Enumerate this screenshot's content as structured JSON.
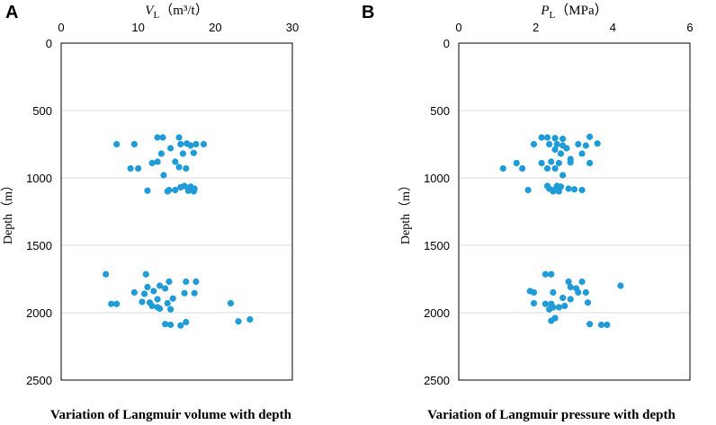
{
  "chart_data": [
    {
      "panel": "A",
      "type": "scatter",
      "xlabel_var": "V",
      "xlabel_sub": "L",
      "xlabel_unit": "（m³/t）",
      "ylabel": "Depth（m）",
      "caption": "Variation of Langmuir volume with depth",
      "xlim": [
        0,
        30
      ],
      "ylim": [
        0,
        2500
      ],
      "x_ticks": [
        "0",
        "10",
        "20",
        "30"
      ],
      "y_ticks": [
        "0",
        "500",
        "1000",
        "1500",
        "2000",
        "2500"
      ],
      "x_axis_position": "top",
      "y_axis_inverted": true,
      "color": "#1f9bd7",
      "points": [
        [
          12.5,
          700
        ],
        [
          13.2,
          700
        ],
        [
          15.3,
          700
        ],
        [
          7.2,
          750
        ],
        [
          9.5,
          750
        ],
        [
          15.5,
          750
        ],
        [
          16.3,
          745
        ],
        [
          16.8,
          760
        ],
        [
          17.5,
          750
        ],
        [
          18.5,
          750
        ],
        [
          14.2,
          780
        ],
        [
          13.0,
          820
        ],
        [
          15.8,
          820
        ],
        [
          17.2,
          815
        ],
        [
          11.8,
          890
        ],
        [
          12.5,
          880
        ],
        [
          14.8,
          880
        ],
        [
          15.3,
          920
        ],
        [
          9.0,
          930
        ],
        [
          10.0,
          930
        ],
        [
          16.2,
          930
        ],
        [
          13.3,
          980
        ],
        [
          16.0,
          1060
        ],
        [
          16.8,
          1065
        ],
        [
          15.5,
          1070
        ],
        [
          17.3,
          1080
        ],
        [
          14.0,
          1090
        ],
        [
          14.8,
          1090
        ],
        [
          16.5,
          1095
        ],
        [
          17.2,
          1100
        ],
        [
          11.2,
          1095
        ],
        [
          13.8,
          1100
        ],
        [
          5.8,
          1715
        ],
        [
          11.0,
          1715
        ],
        [
          14.0,
          1770
        ],
        [
          16.2,
          1770
        ],
        [
          17.5,
          1770
        ],
        [
          11.2,
          1810
        ],
        [
          12.8,
          1800
        ],
        [
          13.5,
          1820
        ],
        [
          12.0,
          1840
        ],
        [
          9.5,
          1850
        ],
        [
          10.8,
          1860
        ],
        [
          16.0,
          1855
        ],
        [
          17.3,
          1855
        ],
        [
          14.5,
          1895
        ],
        [
          12.5,
          1900
        ],
        [
          10.5,
          1920
        ],
        [
          11.5,
          1925
        ],
        [
          13.8,
          1930
        ],
        [
          6.5,
          1935
        ],
        [
          7.2,
          1935
        ],
        [
          22.0,
          1930
        ],
        [
          11.8,
          1950
        ],
        [
          12.5,
          1960
        ],
        [
          12.8,
          1970
        ],
        [
          14.2,
          1975
        ],
        [
          24.5,
          2050
        ],
        [
          23.0,
          2065
        ],
        [
          16.2,
          2070
        ],
        [
          13.5,
          2085
        ],
        [
          14.2,
          2090
        ],
        [
          15.5,
          2095
        ]
      ]
    },
    {
      "panel": "B",
      "type": "scatter",
      "xlabel_var": "P",
      "xlabel_sub": "L",
      "xlabel_unit": "（MPa）",
      "ylabel": "Depth（m）",
      "caption": "Variation of Langmuir pressure with depth",
      "xlim": [
        0,
        6
      ],
      "ylim": [
        0,
        2500
      ],
      "x_ticks": [
        "0",
        "2",
        "4",
        "6"
      ],
      "y_ticks": [
        "0",
        "500",
        "1000",
        "1500",
        "2000",
        "2500"
      ],
      "x_axis_position": "top",
      "y_axis_inverted": true,
      "color": "#1f9bd7",
      "points": [
        [
          2.15,
          700
        ],
        [
          2.3,
          700
        ],
        [
          2.5,
          705
        ],
        [
          3.4,
          695
        ],
        [
          2.7,
          710
        ],
        [
          1.95,
          750
        ],
        [
          2.35,
          750
        ],
        [
          2.55,
          750
        ],
        [
          2.7,
          760
        ],
        [
          3.1,
          750
        ],
        [
          3.3,
          760
        ],
        [
          3.6,
          745
        ],
        [
          2.5,
          790
        ],
        [
          2.8,
          780
        ],
        [
          2.65,
          820
        ],
        [
          3.2,
          820
        ],
        [
          2.9,
          860
        ],
        [
          1.5,
          890
        ],
        [
          2.15,
          890
        ],
        [
          2.4,
          880
        ],
        [
          2.6,
          890
        ],
        [
          2.9,
          885
        ],
        [
          3.4,
          890
        ],
        [
          1.15,
          930
        ],
        [
          1.65,
          930
        ],
        [
          2.3,
          930
        ],
        [
          2.5,
          930
        ],
        [
          2.7,
          980
        ],
        [
          2.3,
          1060
        ],
        [
          2.55,
          1060
        ],
        [
          2.65,
          1065
        ],
        [
          2.35,
          1080
        ],
        [
          2.5,
          1085
        ],
        [
          2.85,
          1080
        ],
        [
          3.0,
          1085
        ],
        [
          3.2,
          1090
        ],
        [
          1.8,
          1090
        ],
        [
          2.45,
          1100
        ],
        [
          2.6,
          1100
        ],
        [
          2.25,
          1715
        ],
        [
          2.4,
          1715
        ],
        [
          2.85,
          1770
        ],
        [
          3.2,
          1770
        ],
        [
          4.2,
          1800
        ],
        [
          2.9,
          1810
        ],
        [
          3.05,
          1820
        ],
        [
          1.85,
          1840
        ],
        [
          1.95,
          1850
        ],
        [
          2.45,
          1850
        ],
        [
          3.1,
          1850
        ],
        [
          3.3,
          1850
        ],
        [
          2.7,
          1890
        ],
        [
          2.9,
          1900
        ],
        [
          3.35,
          1925
        ],
        [
          1.95,
          1930
        ],
        [
          2.25,
          1935
        ],
        [
          2.4,
          1935
        ],
        [
          2.75,
          1950
        ],
        [
          2.45,
          1960
        ],
        [
          2.35,
          1975
        ],
        [
          2.6,
          1960
        ],
        [
          2.5,
          2040
        ],
        [
          2.4,
          2060
        ],
        [
          3.4,
          2085
        ],
        [
          3.7,
          2090
        ],
        [
          3.85,
          2090
        ]
      ]
    }
  ]
}
